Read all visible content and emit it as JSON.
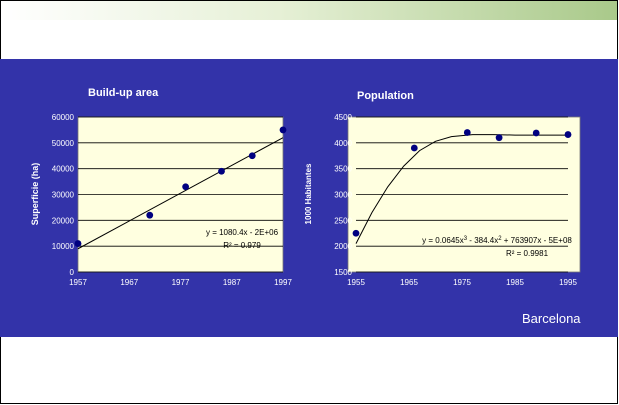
{
  "city": "Barcelona",
  "colors": {
    "panel": "#3333a9",
    "plot_bg": "#ffffe0",
    "marker": "#000080",
    "line": "#000000",
    "banner_end": "#a9c98a"
  },
  "chart_data": [
    {
      "type": "scatter",
      "title": "Build-up area",
      "ylabel": "Superficie (ha)",
      "xlabel": "",
      "xlim": [
        1957,
        1997
      ],
      "ylim": [
        0,
        60000
      ],
      "xticks": [
        "1957",
        "1967",
        "1977",
        "1987",
        "1997"
      ],
      "yticks": [
        "0",
        "10000",
        "20000",
        "30000",
        "40000",
        "50000",
        "60000"
      ],
      "points": [
        [
          1957,
          11000
        ],
        [
          1971,
          22000
        ],
        [
          1978,
          33000
        ],
        [
          1985,
          39000
        ],
        [
          1991,
          45000
        ],
        [
          1997,
          55000
        ]
      ],
      "trendline": {
        "kind": "linear",
        "slope": 1080.4,
        "from": [
          1957,
          9000
        ],
        "to": [
          1997,
          52000
        ]
      },
      "equation": "y = 1080.4x - 2E+06",
      "r2": "R² = 0.979",
      "grid": "horizontal"
    },
    {
      "type": "scatter",
      "title": "Population",
      "ylabel": "1000 Habitantes",
      "xlabel": "",
      "xlim": [
        1955,
        1995
      ],
      "ylim": [
        1500,
        4500
      ],
      "xticks": [
        "1955",
        "1965",
        "1975",
        "1985",
        "1995"
      ],
      "yticks": [
        "1500",
        "2000",
        "2500",
        "3000",
        "3500",
        "4000",
        "4500"
      ],
      "points": [
        [
          1955,
          2250
        ],
        [
          1966,
          3900
        ],
        [
          1976,
          4200
        ],
        [
          1982,
          4100
        ],
        [
          1989,
          4190
        ],
        [
          1995,
          4160
        ]
      ],
      "trendline": {
        "kind": "polynomial-3",
        "curve": [
          [
            1955,
            2050
          ],
          [
            1958,
            2650
          ],
          [
            1961,
            3150
          ],
          [
            1964,
            3550
          ],
          [
            1967,
            3850
          ],
          [
            1970,
            4030
          ],
          [
            1973,
            4120
          ],
          [
            1977,
            4160
          ],
          [
            1981,
            4160
          ],
          [
            1985,
            4150
          ],
          [
            1989,
            4150
          ],
          [
            1992,
            4150
          ],
          [
            1995,
            4150
          ]
        ]
      },
      "equation_parts": {
        "a": "y = 0.0645x",
        "b": " - 384.4x",
        "c": " + 763907x - 5E+08",
        "exp3": "3",
        "exp2": "2"
      },
      "r2": "R² = 0.9981",
      "grid": "horizontal"
    }
  ]
}
